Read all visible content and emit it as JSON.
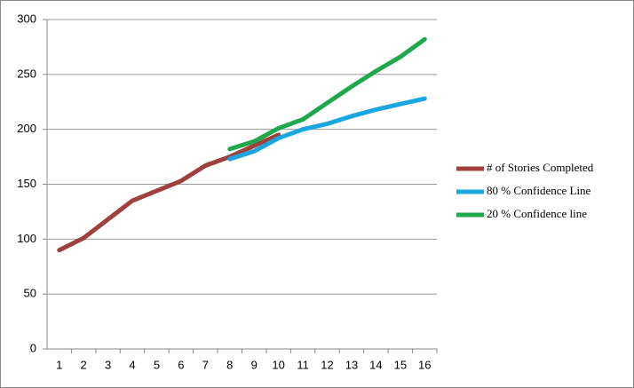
{
  "chart_data": {
    "type": "line",
    "categories": [
      "1",
      "2",
      "3",
      "4",
      "5",
      "6",
      "7",
      "8",
      "9",
      "10",
      "11",
      "12",
      "13",
      "14",
      "15",
      "16"
    ],
    "series": [
      {
        "name": "# of Stories Completed",
        "color": "#a0403d",
        "values": [
          90,
          101,
          118,
          135,
          144,
          153,
          167,
          175,
          185,
          195,
          null,
          null,
          null,
          null,
          null,
          null
        ]
      },
      {
        "name": "80 % Confidence Line",
        "color": "#1aa6e0",
        "values": [
          null,
          null,
          null,
          null,
          null,
          null,
          null,
          173,
          180,
          192,
          200,
          205,
          212,
          218,
          223,
          228
        ]
      },
      {
        "name": "20 % Confidence line",
        "color": "#1fa84b",
        "values": [
          null,
          null,
          null,
          null,
          null,
          null,
          null,
          182,
          189,
          201,
          209,
          224,
          239,
          253,
          266,
          282
        ]
      }
    ],
    "ylim": [
      0,
      300
    ],
    "yticks": [
      0,
      50,
      100,
      150,
      200,
      250,
      300
    ],
    "grid": true,
    "legend": "right"
  }
}
